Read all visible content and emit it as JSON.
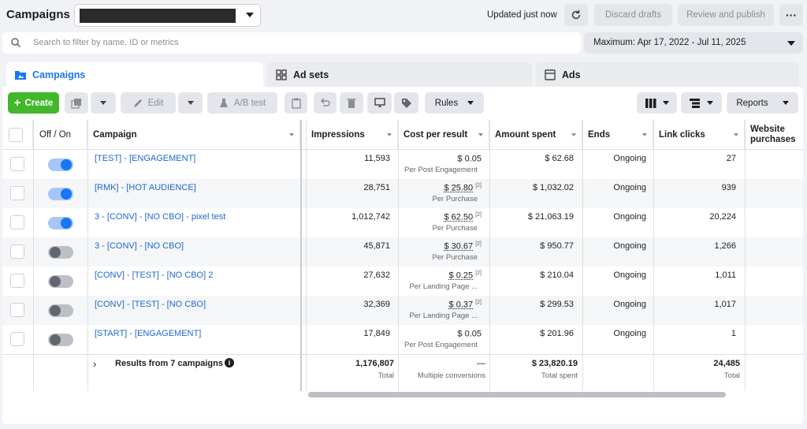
{
  "header": {
    "title": "Campaigns",
    "updated": "Updated just now",
    "discard_label": "Discard drafts",
    "publish_label": "Review and publish",
    "more_label": "···"
  },
  "search": {
    "placeholder": "Search to filter by name, ID or metrics"
  },
  "date_range": "Maximum: Apr 17, 2022 - Jul 11, 2025",
  "tabs": [
    {
      "label": "Campaigns",
      "icon": "campaigns-icon"
    },
    {
      "label": "Ad sets",
      "icon": "grid-icon"
    },
    {
      "label": "Ads",
      "icon": "ad-icon"
    }
  ],
  "toolbar": {
    "create": "Create",
    "edit": "Edit",
    "ab_test": "A/B test",
    "rules": "Rules",
    "reports": "Reports"
  },
  "columns": {
    "off_on": "Off / On",
    "campaign": "Campaign",
    "impressions": "Impressions",
    "cost_per_result": "Cost per result",
    "amount_spent": "Amount spent",
    "ends": "Ends",
    "link_clicks": "Link clicks",
    "website_purchases": "Website purchases"
  },
  "rows": [
    {
      "on": true,
      "name": "[TEST] - [ENGAGEMENT]",
      "impressions": "11,593",
      "cpr": "$ 0.05",
      "cpr_note": "",
      "cpr_sub": "Per Post Engagement",
      "spent": "$ 62.68",
      "ends": "Ongoing",
      "clicks": "27"
    },
    {
      "on": true,
      "name": "[RMK] - [HOT AUDIENCE]",
      "impressions": "28,751",
      "cpr": "$ 25.80",
      "cpr_note": "[2]",
      "cpr_sub": "Per Purchase",
      "spent": "$ 1,032.02",
      "ends": "Ongoing",
      "clicks": "939"
    },
    {
      "on": true,
      "name": "3 - [CONV] - [NO CBO] - pixel test",
      "impressions": "1,012,742",
      "cpr": "$ 62.50",
      "cpr_note": "[2]",
      "cpr_sub": "Per Purchase",
      "spent": "$ 21,063.19",
      "ends": "Ongoing",
      "clicks": "20,224"
    },
    {
      "on": false,
      "name": "3 - [CONV] - [NO CBO]",
      "impressions": "45,871",
      "cpr": "$ 30.67",
      "cpr_note": "[2]",
      "cpr_sub": "Per Purchase",
      "spent": "$ 950.77",
      "ends": "Ongoing",
      "clicks": "1,266"
    },
    {
      "on": false,
      "name": "[CONV] - [TEST] - [NO CBO] 2",
      "impressions": "27,632",
      "cpr": "$ 0.25",
      "cpr_note": "[2]",
      "cpr_sub": "Per Landing Page ...",
      "spent": "$ 210.04",
      "ends": "Ongoing",
      "clicks": "1,011"
    },
    {
      "on": false,
      "name": "[CONV] - [TEST] - [NO CBO]",
      "impressions": "32,369",
      "cpr": "$ 0.37",
      "cpr_note": "[2]",
      "cpr_sub": "Per Landing Page ...",
      "spent": "$ 299.53",
      "ends": "Ongoing",
      "clicks": "1,017"
    },
    {
      "on": false,
      "name": "[START] - [ENGAGEMENT]",
      "impressions": "17,849",
      "cpr": "$ 0.05",
      "cpr_note": "",
      "cpr_sub": "Per Post Engagement",
      "spent": "$ 201.96",
      "ends": "Ongoing",
      "clicks": "1"
    }
  ],
  "totals": {
    "label": "Results from 7 campaigns",
    "impressions": "1,176,807",
    "impressions_sub": "Total",
    "cpr": "—",
    "cpr_sub": "Multiple conversions",
    "spent": "$ 23,820.19",
    "spent_sub": "Total spent",
    "clicks": "24,485",
    "clicks_sub": "Total"
  }
}
